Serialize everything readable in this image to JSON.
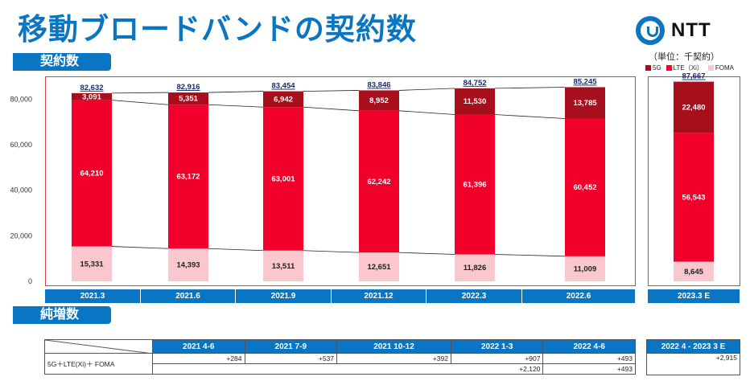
{
  "title": "移動ブロードバンドの契約数",
  "logo_text": "NTT",
  "unit_label": "（単位：千契約）",
  "section1": "契約数",
  "section2": "純増数",
  "legend": [
    {
      "label": "5G",
      "color": "#a60f1b"
    },
    {
      "label": "LTE（Xi）",
      "color": "#f0002a"
    },
    {
      "label": "FOMA",
      "color": "#f9c7cd"
    }
  ],
  "chart_data": {
    "type": "bar",
    "stacked": true,
    "categories": [
      "2021.3",
      "2021.6",
      "2021.9",
      "2021.12",
      "2022.3",
      "2022.6",
      "2023.3 E"
    ],
    "series": [
      {
        "name": "FOMA",
        "color": "#f9c7cd",
        "values": [
          15331,
          14393,
          13511,
          12651,
          11826,
          11009,
          8645
        ],
        "labels": [
          "15,331",
          "14,393",
          "13,511",
          "12,651",
          "11,826",
          "11,009",
          "8,645"
        ]
      },
      {
        "name": "LTE（Xi）",
        "color": "#f0002a",
        "values": [
          64210,
          63172,
          63001,
          62242,
          61396,
          60452,
          56543
        ],
        "labels": [
          "64,210",
          "63,172",
          "63,001",
          "62,242",
          "61,396",
          "60,452",
          "56,543"
        ]
      },
      {
        "name": "5G",
        "color": "#a60f1b",
        "values": [
          3091,
          5351,
          6942,
          8952,
          11530,
          13785,
          22480
        ],
        "labels": [
          "3,091",
          "5,351",
          "6,942",
          "8,952",
          "11,530",
          "13,785",
          "22,480"
        ]
      }
    ],
    "totals": [
      "82,632",
      "82,916",
      "83,454",
      "83,846",
      "84,752",
      "85,245",
      "87,667"
    ],
    "ylim": [
      0,
      90000
    ],
    "yticks": [
      0,
      20000,
      40000,
      60000,
      80000
    ],
    "ytick_labels": [
      "0",
      "20,000",
      "40,000",
      "60,000",
      "80,000"
    ],
    "xlabel": "",
    "ylabel": ""
  },
  "net_table": {
    "headers": [
      "2021 4-6",
      "2021 7-9",
      "2021 10-12",
      "2022 1-3",
      "2022 4-6"
    ],
    "side_header": "2022 4 - 2023 3 E",
    "row_label": "5G＋LTE(Xi)＋ FOMA",
    "quarterly": [
      "+284",
      "+537",
      "+392",
      "+907",
      "+493"
    ],
    "fy_2021": "+2,120",
    "fy_2022_ytd": "+493",
    "side_value": "+2,915"
  }
}
